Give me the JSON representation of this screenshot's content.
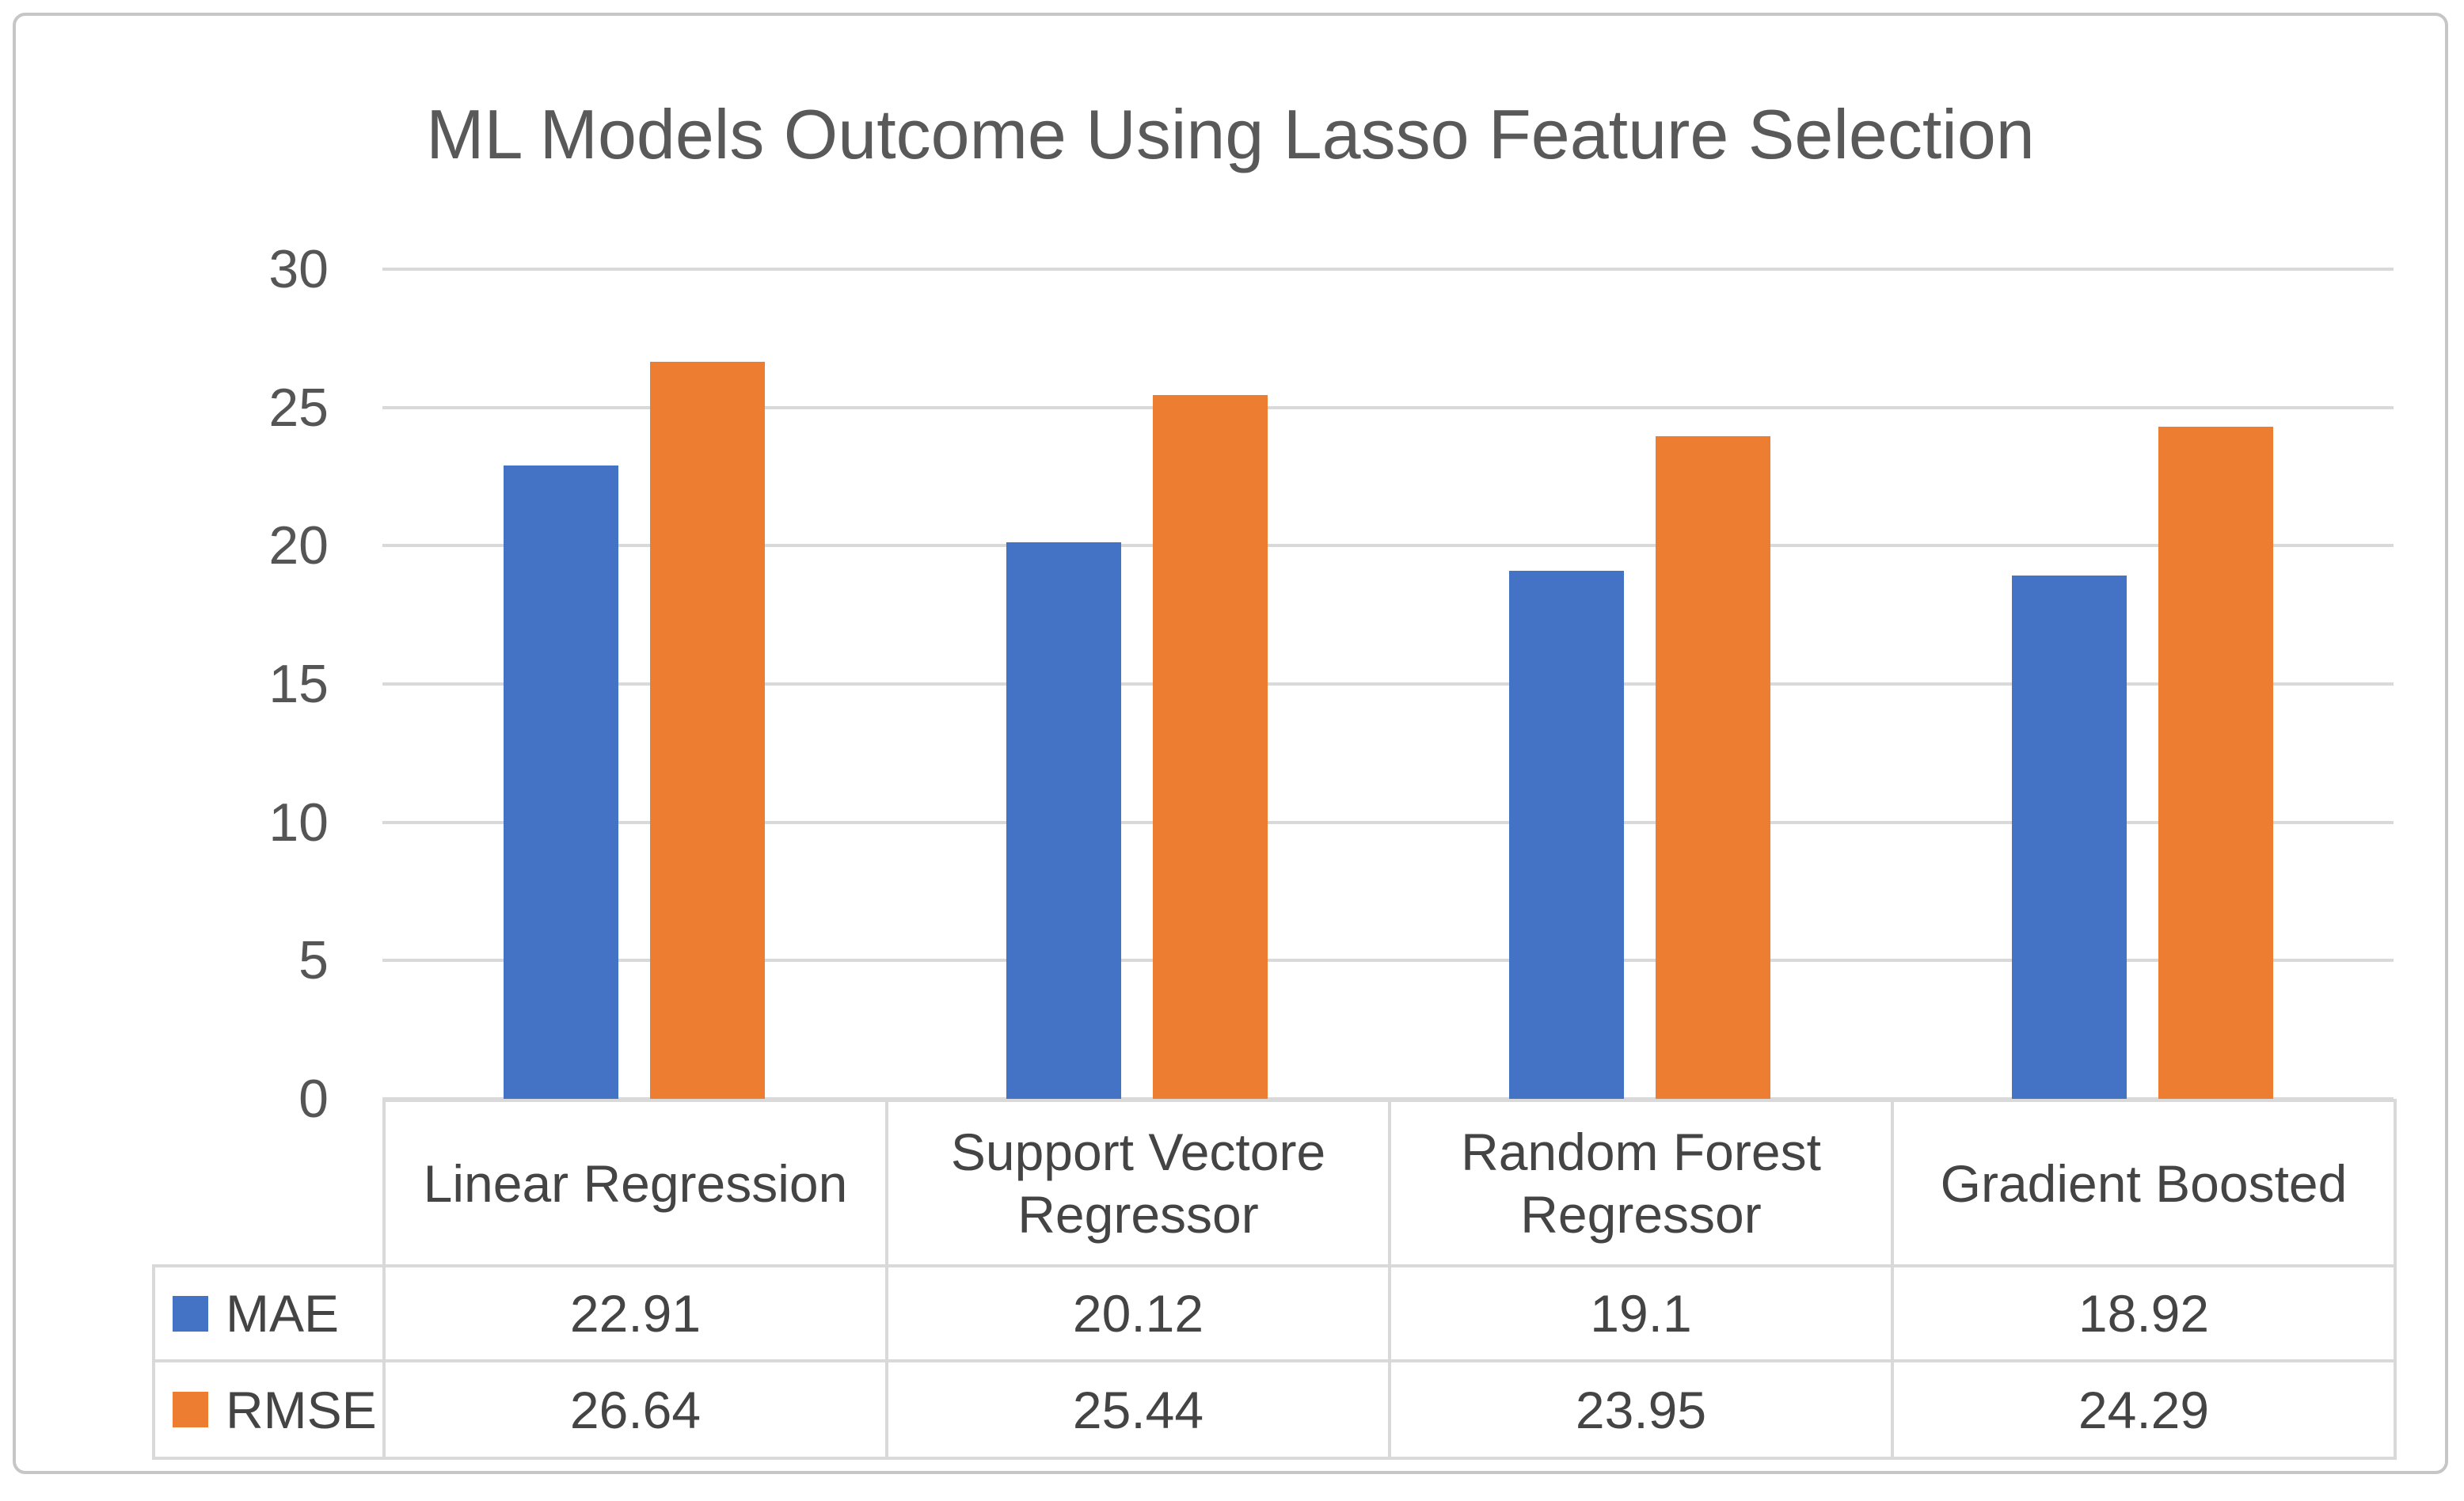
{
  "chart_data": {
    "type": "bar",
    "title": "ML Models Outcome Using Lasso Feature Selection",
    "categories": [
      "Linear Regression",
      "Support Vectore Regressor",
      "Random Forest Regressor",
      "Gradient Boosted"
    ],
    "series": [
      {
        "name": "MAE",
        "color": "#4472C4",
        "values": [
          22.91,
          20.12,
          19.1,
          18.92
        ]
      },
      {
        "name": "RMSE",
        "color": "#ED7D31",
        "values": [
          26.64,
          25.44,
          23.95,
          24.29
        ]
      }
    ],
    "xlabel": "",
    "ylabel": "",
    "ylim": [
      0,
      30
    ],
    "ytick_step": 5,
    "ytick_labels": [
      "0",
      "5",
      "10",
      "15",
      "20",
      "25",
      "30"
    ],
    "grid": true,
    "legend_position": "data-table-left",
    "data_table_shown": true
  },
  "colors": {
    "series_mae": "#4472C4",
    "series_rmse": "#ED7D31",
    "gridline": "#d9d9d9",
    "table_border": "#d9d9d9",
    "title_text": "#595959",
    "axis_text": "#555555",
    "table_text": "#444444",
    "chart_border": "#c6c6c6",
    "background": "#ffffff"
  }
}
